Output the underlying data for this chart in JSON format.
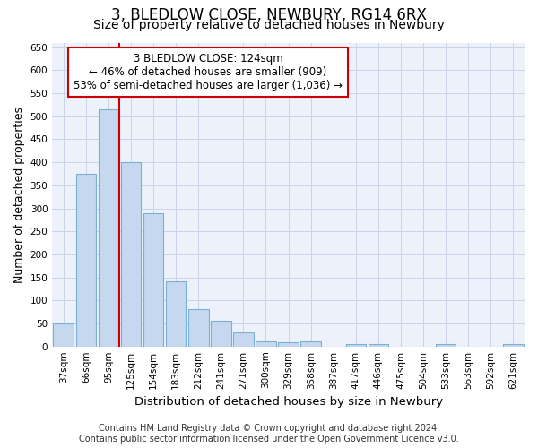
{
  "title": "3, BLEDLOW CLOSE, NEWBURY, RG14 6RX",
  "subtitle": "Size of property relative to detached houses in Newbury",
  "xlabel": "Distribution of detached houses by size in Newbury",
  "ylabel": "Number of detached properties",
  "footer_line1": "Contains HM Land Registry data © Crown copyright and database right 2024.",
  "footer_line2": "Contains public sector information licensed under the Open Government Licence v3.0.",
  "bar_labels": [
    "37sqm",
    "66sqm",
    "95sqm",
    "125sqm",
    "154sqm",
    "183sqm",
    "212sqm",
    "241sqm",
    "271sqm",
    "300sqm",
    "329sqm",
    "358sqm",
    "387sqm",
    "417sqm",
    "446sqm",
    "475sqm",
    "504sqm",
    "533sqm",
    "563sqm",
    "592sqm",
    "621sqm"
  ],
  "bar_values": [
    50,
    375,
    515,
    400,
    290,
    142,
    82,
    55,
    30,
    12,
    10,
    12,
    0,
    5,
    5,
    0,
    0,
    5,
    0,
    0,
    5
  ],
  "bar_color": "#c5d8f0",
  "bar_edge_color": "#7bafd4",
  "annotation_line1": "3 BLEDLOW CLOSE: 124sqm",
  "annotation_line2": "← 46% of detached houses are smaller (909)",
  "annotation_line3": "53% of semi-detached houses are larger (1,036) →",
  "annotation_box_color": "#cc0000",
  "vline_x_pos": 2.5,
  "vline_color": "#cc0000",
  "ylim": [
    0,
    660
  ],
  "yticks": [
    0,
    50,
    100,
    150,
    200,
    250,
    300,
    350,
    400,
    450,
    500,
    550,
    600,
    650
  ],
  "grid_color": "#c8d4e8",
  "bg_color": "#edf2fa",
  "title_fontsize": 12,
  "subtitle_fontsize": 10,
  "axis_label_fontsize": 9,
  "tick_fontsize": 7.5,
  "footer_fontsize": 7,
  "annotation_fontsize": 8.5
}
